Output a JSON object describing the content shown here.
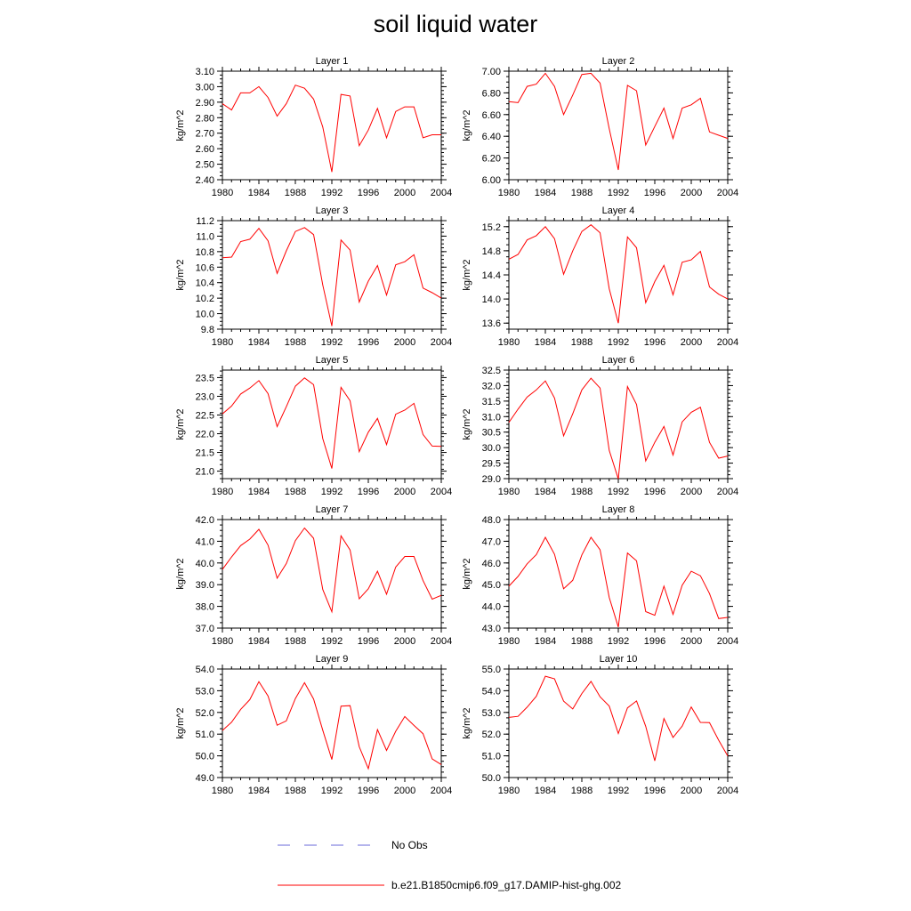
{
  "title": "soil liquid water",
  "legend": {
    "items": [
      {
        "label": "No Obs",
        "color": "#6a6ad8",
        "dash": true
      },
      {
        "label": "b.e21.B1850cmip6.f09_g17.DAMIP-hist-ghg.002",
        "color": "#ff0000",
        "dash": false
      }
    ]
  },
  "chart_data": [
    {
      "type": "line",
      "title": "Layer 1",
      "ylabel": "kg/m^2",
      "xlim": [
        1980,
        2004
      ],
      "xticks": [
        "1980",
        "1984",
        "1988",
        "1992",
        "1996",
        "2000",
        "2004"
      ],
      "ylim": [
        2.4,
        3.1
      ],
      "yticks": [
        "2.40",
        "2.50",
        "2.60",
        "2.70",
        "2.80",
        "2.90",
        "3.00",
        "3.10"
      ],
      "series": [
        {
          "name": "b.e21.B1850cmip6.f09_g17.DAMIP-hist-ghg.002",
          "x": [
            1980,
            1981,
            1982,
            1983,
            1984,
            1985,
            1986,
            1987,
            1988,
            1989,
            1990,
            1991,
            1992,
            1993,
            1994,
            1995,
            1996,
            1997,
            1998,
            1999,
            2000,
            2001,
            2002,
            2003,
            2004
          ],
          "values": [
            2.89,
            2.85,
            2.96,
            2.96,
            3.0,
            2.93,
            2.81,
            2.89,
            3.01,
            2.99,
            2.92,
            2.74,
            2.45,
            2.95,
            2.94,
            2.62,
            2.72,
            2.86,
            2.67,
            2.84,
            2.87,
            2.87,
            2.67,
            2.69,
            2.69
          ]
        }
      ]
    },
    {
      "type": "line",
      "title": "Layer 2",
      "ylabel": "kg/m^2",
      "xlim": [
        1980,
        2004
      ],
      "xticks": [
        "1980",
        "1984",
        "1988",
        "1992",
        "1996",
        "2000",
        "2004"
      ],
      "ylim": [
        6.0,
        7.0
      ],
      "yticks": [
        "6.00",
        "6.20",
        "6.40",
        "6.60",
        "6.80",
        "7.00"
      ],
      "series": [
        {
          "name": "b.e21.B1850cmip6.f09_g17.DAMIP-hist-ghg.002",
          "x": [
            1980,
            1981,
            1982,
            1983,
            1984,
            1985,
            1986,
            1987,
            1988,
            1989,
            1990,
            1991,
            1992,
            1993,
            1994,
            1995,
            1996,
            1997,
            1998,
            1999,
            2000,
            2001,
            2002,
            2003,
            2004
          ],
          "values": [
            6.72,
            6.71,
            6.86,
            6.88,
            6.98,
            6.86,
            6.6,
            6.78,
            6.97,
            6.98,
            6.89,
            6.47,
            6.09,
            6.87,
            6.82,
            6.32,
            6.49,
            6.66,
            6.38,
            6.66,
            6.69,
            6.75,
            6.44,
            6.41,
            6.38
          ]
        }
      ]
    },
    {
      "type": "line",
      "title": "Layer 3",
      "ylabel": "kg/m^2",
      "xlim": [
        1980,
        2004
      ],
      "xticks": [
        "1980",
        "1984",
        "1988",
        "1992",
        "1996",
        "2000",
        "2004"
      ],
      "ylim": [
        9.8,
        11.2
      ],
      "yticks": [
        "9.8",
        "10.0",
        "10.2",
        "10.4",
        "10.6",
        "10.8",
        "11.0",
        "11.2"
      ],
      "series": [
        {
          "name": "b.e21.B1850cmip6.f09_g17.DAMIP-hist-ghg.002",
          "x": [
            1980,
            1981,
            1982,
            1983,
            1984,
            1985,
            1986,
            1987,
            1988,
            1989,
            1990,
            1991,
            1992,
            1993,
            1994,
            1995,
            1996,
            1997,
            1998,
            1999,
            2000,
            2001,
            2002,
            2003,
            2004
          ],
          "values": [
            10.72,
            10.73,
            10.93,
            10.96,
            11.1,
            10.94,
            10.52,
            10.81,
            11.06,
            11.11,
            11.02,
            10.37,
            9.84,
            10.95,
            10.82,
            10.15,
            10.42,
            10.62,
            10.24,
            10.63,
            10.67,
            10.76,
            10.33,
            10.27,
            10.2
          ]
        }
      ]
    },
    {
      "type": "line",
      "title": "Layer 4",
      "ylabel": "kg/m^2",
      "xlim": [
        1980,
        2004
      ],
      "xticks": [
        "1980",
        "1984",
        "1988",
        "1992",
        "1996",
        "2000",
        "2004"
      ],
      "ylim": [
        13.5,
        15.3
      ],
      "yticks": [
        "13.6",
        "14.0",
        "14.4",
        "14.8",
        "15.2"
      ],
      "series": [
        {
          "name": "b.e21.B1850cmip6.f09_g17.DAMIP-hist-ghg.002",
          "x": [
            1980,
            1981,
            1982,
            1983,
            1984,
            1985,
            1986,
            1987,
            1988,
            1989,
            1990,
            1991,
            1992,
            1993,
            1994,
            1995,
            1996,
            1997,
            1998,
            1999,
            2000,
            2001,
            2002,
            2003,
            2004
          ],
          "values": [
            14.66,
            14.74,
            14.98,
            15.05,
            15.2,
            15.0,
            14.41,
            14.8,
            15.12,
            15.23,
            15.1,
            14.17,
            13.6,
            15.03,
            14.85,
            13.94,
            14.29,
            14.56,
            14.07,
            14.61,
            14.65,
            14.79,
            14.2,
            14.08,
            14.0
          ]
        }
      ]
    },
    {
      "type": "line",
      "title": "Layer 5",
      "ylabel": "kg/m^2",
      "xlim": [
        1980,
        2004
      ],
      "xticks": [
        "1980",
        "1984",
        "1988",
        "1992",
        "1996",
        "2000",
        "2004"
      ],
      "ylim": [
        20.8,
        23.7
      ],
      "yticks": [
        "21.0",
        "21.5",
        "22.0",
        "22.5",
        "23.0",
        "23.5"
      ],
      "series": [
        {
          "name": "b.e21.B1850cmip6.f09_g17.DAMIP-hist-ghg.002",
          "x": [
            1980,
            1981,
            1982,
            1983,
            1984,
            1985,
            1986,
            1987,
            1988,
            1989,
            1990,
            1991,
            1992,
            1993,
            1994,
            1995,
            1996,
            1997,
            1998,
            1999,
            2000,
            2001,
            2002,
            2003,
            2004
          ],
          "values": [
            22.53,
            22.74,
            23.06,
            23.22,
            23.42,
            23.07,
            22.19,
            22.72,
            23.27,
            23.49,
            23.31,
            21.87,
            21.07,
            23.24,
            22.88,
            21.52,
            22.04,
            22.41,
            21.71,
            22.52,
            22.63,
            22.81,
            21.98,
            21.67,
            21.66
          ]
        }
      ]
    },
    {
      "type": "line",
      "title": "Layer 6",
      "ylabel": "kg/m^2",
      "xlim": [
        1980,
        2004
      ],
      "xticks": [
        "1980",
        "1984",
        "1988",
        "1992",
        "1996",
        "2000",
        "2004"
      ],
      "ylim": [
        29.0,
        32.5
      ],
      "yticks": [
        "29.0",
        "29.5",
        "30.0",
        "30.5",
        "31.0",
        "31.5",
        "32.0",
        "32.5"
      ],
      "series": [
        {
          "name": "b.e21.B1850cmip6.f09_g17.DAMIP-hist-ghg.002",
          "x": [
            1980,
            1981,
            1982,
            1983,
            1984,
            1985,
            1986,
            1987,
            1988,
            1989,
            1990,
            1991,
            1992,
            1993,
            1994,
            1995,
            1996,
            1997,
            1998,
            1999,
            2000,
            2001,
            2002,
            2003,
            2004
          ],
          "values": [
            30.81,
            31.24,
            31.63,
            31.86,
            32.15,
            31.6,
            30.38,
            31.09,
            31.86,
            32.24,
            31.92,
            29.91,
            28.99,
            31.97,
            31.39,
            29.57,
            30.17,
            30.68,
            29.76,
            30.83,
            31.14,
            31.3,
            30.17,
            29.66,
            29.73
          ]
        }
      ]
    },
    {
      "type": "line",
      "title": "Layer 7",
      "ylabel": "kg/m^2",
      "xlim": [
        1980,
        2004
      ],
      "xticks": [
        "1980",
        "1984",
        "1988",
        "1992",
        "1996",
        "2000",
        "2004"
      ],
      "ylim": [
        37.0,
        42.0
      ],
      "yticks": [
        "37.0",
        "38.0",
        "39.0",
        "40.0",
        "41.0",
        "42.0"
      ],
      "series": [
        {
          "name": "b.e21.B1850cmip6.f09_g17.DAMIP-hist-ghg.002",
          "x": [
            1980,
            1981,
            1982,
            1983,
            1984,
            1985,
            1986,
            1987,
            1988,
            1989,
            1990,
            1991,
            1992,
            1993,
            1994,
            1995,
            1996,
            1997,
            1998,
            1999,
            2000,
            2001,
            2002,
            2003,
            2004
          ],
          "values": [
            39.7,
            40.28,
            40.8,
            41.1,
            41.55,
            40.82,
            39.3,
            39.97,
            41.03,
            41.61,
            41.14,
            38.78,
            37.75,
            41.25,
            40.6,
            38.35,
            38.81,
            39.62,
            38.56,
            39.81,
            40.3,
            40.3,
            39.19,
            38.33,
            38.51
          ]
        }
      ]
    },
    {
      "type": "line",
      "title": "Layer 8",
      "ylabel": "kg/m^2",
      "xlim": [
        1980,
        2004
      ],
      "xticks": [
        "1980",
        "1984",
        "1988",
        "1992",
        "1996",
        "2000",
        "2004"
      ],
      "ylim": [
        43.0,
        48.0
      ],
      "yticks": [
        "43.0",
        "44.0",
        "45.0",
        "46.0",
        "47.0",
        "48.0"
      ],
      "series": [
        {
          "name": "b.e21.B1850cmip6.f09_g17.DAMIP-hist-ghg.002",
          "x": [
            1980,
            1981,
            1982,
            1983,
            1984,
            1985,
            1986,
            1987,
            1988,
            1989,
            1990,
            1991,
            1992,
            1993,
            1994,
            1995,
            1996,
            1997,
            1998,
            1999,
            2000,
            2001,
            2002,
            2003,
            2004
          ],
          "values": [
            44.93,
            45.38,
            45.96,
            46.38,
            47.18,
            46.4,
            44.81,
            45.2,
            46.37,
            47.18,
            46.61,
            44.41,
            43.05,
            46.46,
            46.1,
            43.76,
            43.59,
            44.93,
            43.63,
            44.97,
            45.62,
            45.41,
            44.59,
            43.44,
            43.49
          ]
        }
      ]
    },
    {
      "type": "line",
      "title": "Layer 9",
      "ylabel": "kg/m^2",
      "xlim": [
        1980,
        2004
      ],
      "xticks": [
        "1980",
        "1984",
        "1988",
        "1992",
        "1996",
        "2000",
        "2004"
      ],
      "ylim": [
        49.0,
        54.0
      ],
      "yticks": [
        "49.0",
        "50.0",
        "51.0",
        "52.0",
        "53.0",
        "54.0"
      ],
      "series": [
        {
          "name": "b.e21.B1850cmip6.f09_g17.DAMIP-hist-ghg.002",
          "x": [
            1980,
            1981,
            1982,
            1983,
            1984,
            1985,
            1986,
            1987,
            1988,
            1989,
            1990,
            1991,
            1992,
            1993,
            1994,
            1995,
            1996,
            1997,
            1998,
            1999,
            2000,
            2001,
            2002,
            2003,
            2004
          ],
          "values": [
            51.17,
            51.55,
            52.14,
            52.59,
            53.42,
            52.76,
            51.41,
            51.61,
            52.64,
            53.37,
            52.62,
            51.18,
            49.83,
            52.29,
            52.31,
            50.42,
            49.41,
            51.21,
            50.25,
            51.13,
            51.81,
            51.4,
            51.02,
            49.86,
            49.6
          ]
        }
      ]
    },
    {
      "type": "line",
      "title": "Layer 10",
      "ylabel": "kg/m^2",
      "xlim": [
        1980,
        2004
      ],
      "xticks": [
        "1980",
        "1984",
        "1988",
        "1992",
        "1996",
        "2000",
        "2004"
      ],
      "ylim": [
        50.0,
        55.0
      ],
      "yticks": [
        "50.0",
        "51.0",
        "52.0",
        "53.0",
        "54.0",
        "55.0"
      ],
      "series": [
        {
          "name": "b.e21.B1850cmip6.f09_g17.DAMIP-hist-ghg.002",
          "x": [
            1980,
            1981,
            1982,
            1983,
            1984,
            1985,
            1986,
            1987,
            1988,
            1989,
            1990,
            1991,
            1992,
            1993,
            1994,
            1995,
            1996,
            1997,
            1998,
            1999,
            2000,
            2001,
            2002,
            2003,
            2004
          ],
          "values": [
            52.77,
            52.82,
            53.24,
            53.74,
            54.67,
            54.55,
            53.52,
            53.16,
            53.87,
            54.43,
            53.72,
            53.29,
            52.03,
            53.21,
            53.53,
            52.36,
            50.77,
            52.72,
            51.85,
            52.37,
            53.25,
            52.54,
            52.53,
            51.72,
            50.99
          ]
        }
      ]
    }
  ]
}
